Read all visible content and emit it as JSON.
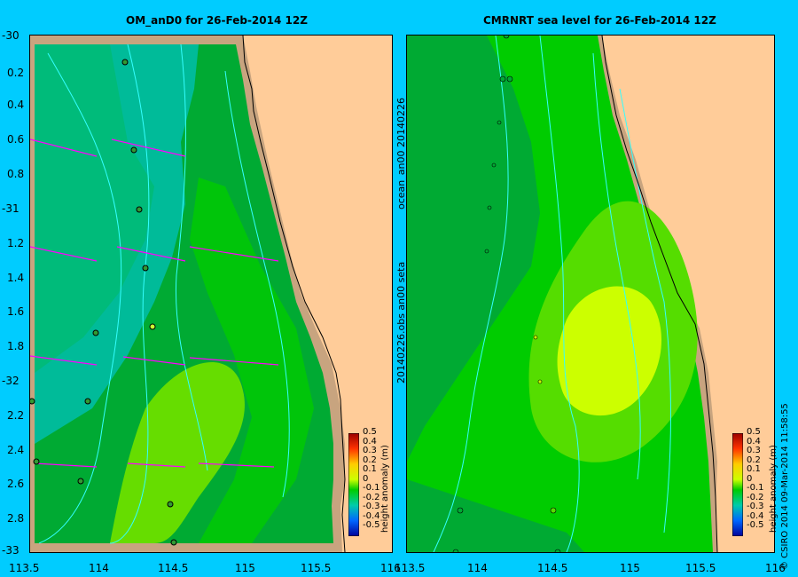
{
  "left_map": {
    "title": "OM_anD0 for 26-Feb-2014 12Z",
    "y_ticks": [
      "-30",
      "0.2",
      "0.4",
      "0.6",
      "0.8",
      "-31",
      "1.2",
      "1.4",
      "1.6",
      "1.8",
      "-32",
      "2.2",
      "2.4",
      "2.6",
      "2.8",
      "-33"
    ],
    "x_ticks": [
      "113.5",
      "114",
      "114.5",
      "115",
      "115.5",
      "116"
    ]
  },
  "right_map": {
    "title": "CMRNRT sea level  for 26-Feb-2014 12Z",
    "x_ticks": [
      "113.5",
      "114",
      "114.5",
      "115",
      "115.5",
      "116"
    ]
  },
  "colorbar": {
    "ticks": [
      "0.5",
      "0.4",
      "0.3",
      "0.2",
      "0.1",
      "0",
      "-0.1",
      "-0.2",
      "-0.3",
      "-0.4",
      "-0.5"
    ],
    "label": "height anomaly (m)"
  },
  "side_text": {
    "line1": "ocean_an00  20140226",
    "line2": "20140226.obs  an00  seta"
  },
  "credit": "© CSIRO 2014   09-Mar-2014 11:58:55",
  "colors": {
    "background": "#00ccff",
    "land": "#ffcc99",
    "shelf": "#c8a47f",
    "vector": "#ff00ff",
    "contour": "#33ffff"
  }
}
